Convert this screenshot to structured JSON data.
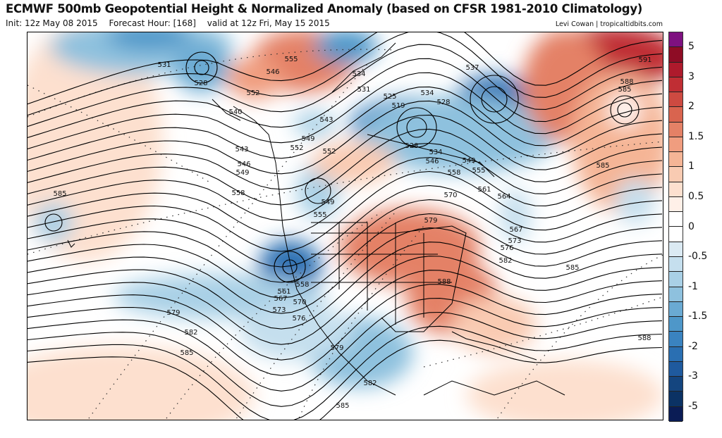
{
  "header": {
    "title": "ECMWF 500mb Geopotential Height & Normalized Anomaly (based on CFSR 1981-2010 Climatology)",
    "init": "Init: 12z May 08 2015",
    "forecast_hour": "Forecast Hour: [168]",
    "valid": "valid at 12z Fri, May 15 2015",
    "credit": "Levi Cowan | tropicaltidbits.com"
  },
  "colorbar": {
    "colors": [
      "#7e1180",
      "#8e0c25",
      "#ae1a2c",
      "#c02e34",
      "#cd4a41",
      "#d9644f",
      "#e48166",
      "#f09d7f",
      "#f5b596",
      "#f9cbb2",
      "#fde0cf",
      "#fff0e8",
      "#ffffff",
      "#ffffff",
      "#dbeaf3",
      "#c5dfee",
      "#a9d0e6",
      "#8ec1de",
      "#6aaad3",
      "#4e97c9",
      "#3a83c0",
      "#2a6fb2",
      "#1f5a9e",
      "#14457f",
      "#0b3264",
      "#0a1c55"
    ],
    "labels": [
      "5",
      "3",
      "2",
      "1.5",
      "1",
      "0.5",
      "0",
      "-0.5",
      "-1",
      "-1.5",
      "-2",
      "-3",
      "-5"
    ]
  },
  "contour_labels": [
    "531",
    "528",
    "555",
    "546",
    "552",
    "540",
    "543",
    "546",
    "549",
    "558",
    "543",
    "549",
    "552",
    "552",
    "549",
    "555",
    "585",
    "534",
    "531",
    "525",
    "519",
    "534",
    "528",
    "537",
    "528",
    "534",
    "546",
    "549",
    "558",
    "555",
    "570",
    "561",
    "564",
    "579",
    "567",
    "573",
    "576",
    "582",
    "585",
    "585",
    "591",
    "588",
    "585",
    "558",
    "561",
    "567",
    "570",
    "573",
    "576",
    "579",
    "582",
    "585",
    "579",
    "582",
    "585",
    "588",
    "588"
  ]
}
